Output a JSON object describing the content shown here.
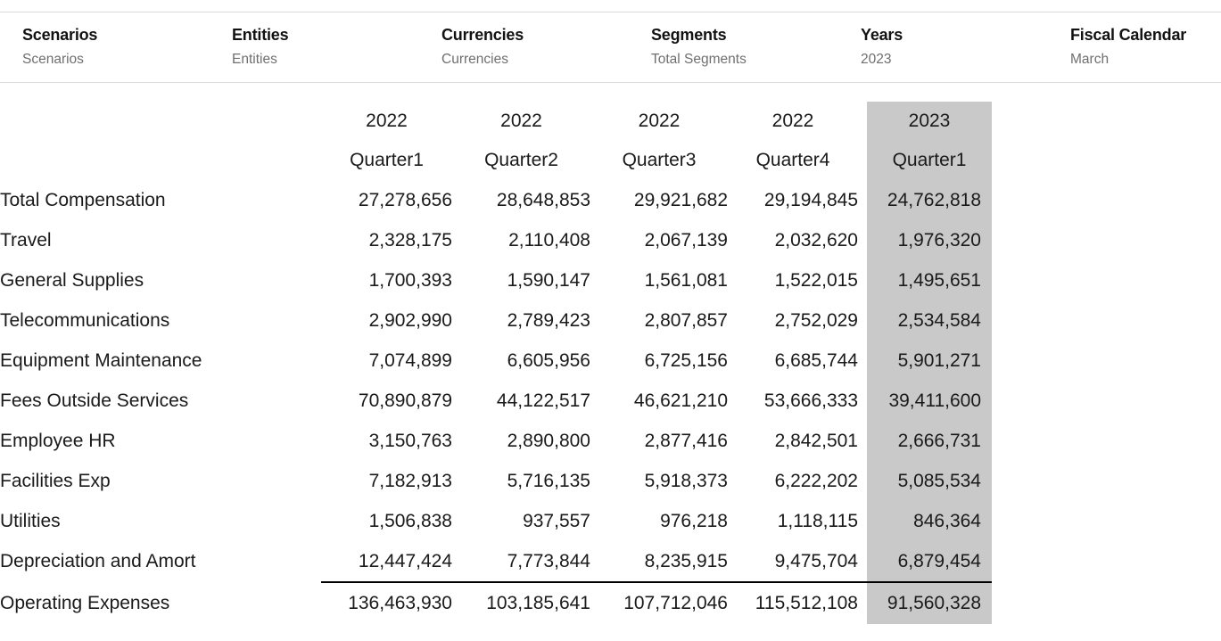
{
  "pov": {
    "items": [
      {
        "label": "Scenarios",
        "value": "Scenarios"
      },
      {
        "label": "Entities",
        "value": "Entities"
      },
      {
        "label": "Currencies",
        "value": "Currencies"
      },
      {
        "label": "Segments",
        "value": "Total Segments"
      },
      {
        "label": "Years",
        "value": "2023"
      },
      {
        "label": "Fiscal Calendar",
        "value": "March"
      }
    ]
  },
  "grid": {
    "columns": [
      {
        "year": "2022",
        "quarter": "Quarter1",
        "highlighted": false
      },
      {
        "year": "2022",
        "quarter": "Quarter2",
        "highlighted": false
      },
      {
        "year": "2022",
        "quarter": "Quarter3",
        "highlighted": false
      },
      {
        "year": "2022",
        "quarter": "Quarter4",
        "highlighted": false
      },
      {
        "year": "2023",
        "quarter": "Quarter1",
        "highlighted": true
      }
    ],
    "rows": [
      {
        "label": "Total Compensation",
        "values": [
          "27,278,656",
          "28,648,853",
          "29,921,682",
          "29,194,845",
          "24,762,818"
        ]
      },
      {
        "label": "Travel",
        "values": [
          "2,328,175",
          "2,110,408",
          "2,067,139",
          "2,032,620",
          "1,976,320"
        ]
      },
      {
        "label": "General Supplies",
        "values": [
          "1,700,393",
          "1,590,147",
          "1,561,081",
          "1,522,015",
          "1,495,651"
        ]
      },
      {
        "label": "Telecommunications",
        "values": [
          "2,902,990",
          "2,789,423",
          "2,807,857",
          "2,752,029",
          "2,534,584"
        ]
      },
      {
        "label": "Equipment Maintenance",
        "values": [
          "7,074,899",
          "6,605,956",
          "6,725,156",
          "6,685,744",
          "5,901,271"
        ]
      },
      {
        "label": "Fees Outside Services",
        "values": [
          "70,890,879",
          "44,122,517",
          "46,621,210",
          "53,666,333",
          "39,411,600"
        ]
      },
      {
        "label": "Employee HR",
        "values": [
          "3,150,763",
          "2,890,800",
          "2,877,416",
          "2,842,501",
          "2,666,731"
        ]
      },
      {
        "label": "Facilities Exp",
        "values": [
          "7,182,913",
          "5,716,135",
          "5,918,373",
          "6,222,202",
          "5,085,534"
        ]
      },
      {
        "label": "Utilities",
        "values": [
          "1,506,838",
          "937,557",
          "976,218",
          "1,118,115",
          "846,364"
        ]
      },
      {
        "label": "Depreciation and Amort",
        "values": [
          "12,447,424",
          "7,773,844",
          "8,235,915",
          "9,475,704",
          "6,879,454"
        ]
      },
      {
        "label": "Operating Expenses",
        "values": [
          "136,463,930",
          "103,185,641",
          "107,712,046",
          "115,512,108",
          "91,560,328"
        ],
        "is_total": true
      }
    ]
  },
  "colors": {
    "highlight_column_bg": "#c9c9c9",
    "pov_value_text": "#6f6f6f",
    "divider_line": "#dcdcdc",
    "total_rule": "#000000"
  }
}
